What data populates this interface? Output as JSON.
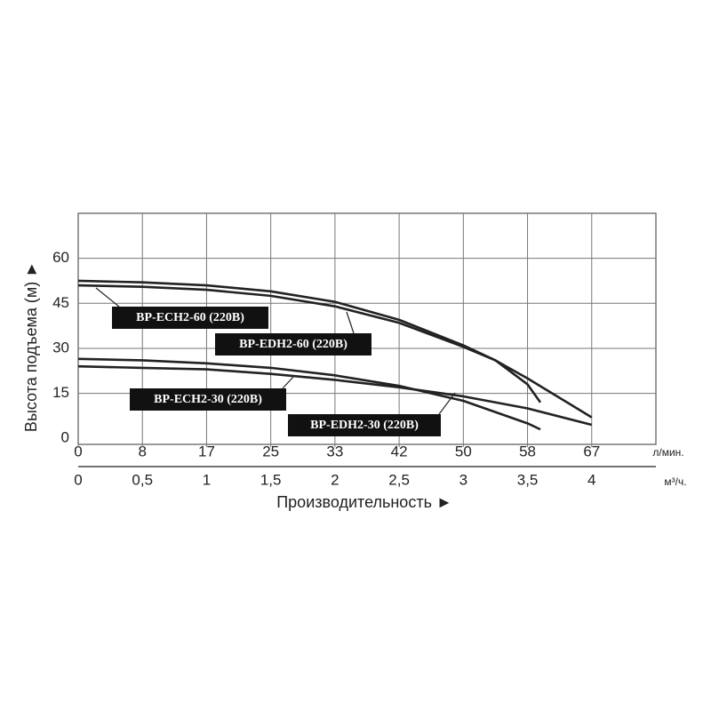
{
  "chart_data": {
    "type": "line",
    "x_label": "Производительность ►",
    "y_label": "Высота подъема (м) ►",
    "x_unit": "м³/ч.",
    "x2_unit": "л/мин.",
    "xlim": [
      0,
      4.5
    ],
    "xticks": [
      0,
      {
        "value": 0.5,
        "label": "0,5"
      },
      1,
      {
        "value": 1.5,
        "label": "1,5"
      },
      2,
      {
        "value": 2.5,
        "label": "2,5"
      },
      3,
      {
        "value": 3.5,
        "label": "3,5"
      },
      4
    ],
    "x2lim": [
      0,
      75
    ],
    "x2ticks": [
      0,
      {
        "value": 8.333,
        "label": "8"
      },
      {
        "value": 16.667,
        "label": "17"
      },
      25,
      {
        "value": 33.333,
        "label": "33"
      },
      {
        "value": 41.667,
        "label": "42"
      },
      50,
      {
        "value": 58.333,
        "label": "58"
      },
      {
        "value": 66.667,
        "label": "67"
      }
    ],
    "ylim": [
      -2,
      75
    ],
    "yticks": [
      0,
      15,
      30,
      45,
      60
    ],
    "grid": true,
    "series": [
      {
        "name": "BP-ECH2-60 (220В)",
        "color": "#222222",
        "x": [
          0,
          0.5,
          1,
          1.5,
          2,
          2.5,
          3,
          3.25,
          3.5,
          3.6
        ],
        "values": [
          52.5,
          52,
          51,
          49,
          45.5,
          39.5,
          31,
          26,
          18,
          12
        ]
      },
      {
        "name": "BP-EDH2-60 (220В)",
        "color": "#222222",
        "x": [
          0,
          0.5,
          1,
          1.5,
          2,
          2.5,
          3,
          3.25,
          3.5,
          4
        ],
        "values": [
          51,
          50.5,
          49.5,
          47.5,
          44,
          38.5,
          30.5,
          26,
          20,
          7
        ]
      },
      {
        "name": "BP-ECH2-30 (220В)",
        "color": "#222222",
        "x": [
          0,
          0.5,
          1,
          1.5,
          2,
          2.5,
          3,
          3.5,
          3.6
        ],
        "values": [
          26.5,
          26,
          25,
          23.5,
          21,
          17.5,
          12.5,
          5,
          3
        ]
      },
      {
        "name": "BP-EDH2-30 (220В)",
        "color": "#222222",
        "x": [
          0,
          0.5,
          1,
          1.5,
          2,
          2.5,
          3,
          3.5,
          4
        ],
        "values": [
          24,
          23.5,
          23,
          21.5,
          19.5,
          17,
          14,
          10,
          4.5
        ]
      }
    ]
  }
}
